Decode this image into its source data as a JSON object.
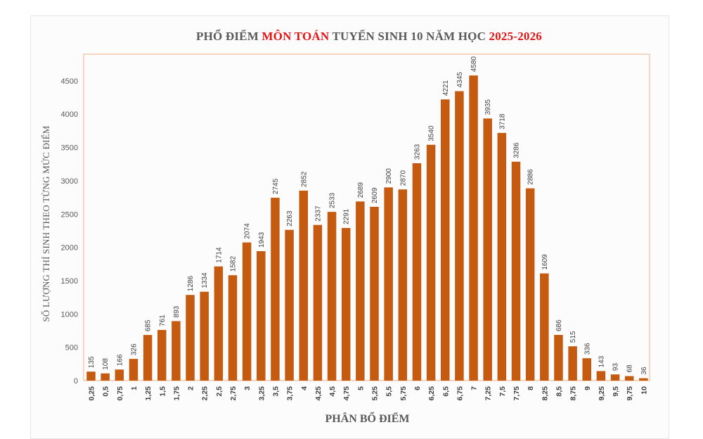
{
  "chart_data": {
    "type": "bar",
    "title_parts": {
      "prefix": "PHỔ ĐIỂM ",
      "highlight": "MÔN TOÁN",
      "middle": " TUYỂN SINH 10 NĂM HỌC ",
      "year": "2025-2026"
    },
    "xlabel": "PHÂN BỔ ĐIỂM",
    "ylabel": "SỐ LƯỢNG THÍ SINH THEO TỪNG MỨC ĐIỂM",
    "ylim": [
      0,
      4900
    ],
    "yticks": [
      0,
      500,
      1000,
      1500,
      2000,
      2500,
      3000,
      3500,
      4000,
      4500
    ],
    "grid": false,
    "categories": [
      "0,25",
      "0,5",
      "0,75",
      "1",
      "1,25",
      "1,5",
      "1,75",
      "2",
      "2,25",
      "2,5",
      "2,75",
      "3",
      "3,25",
      "3,5",
      "3,75",
      "4",
      "4,25",
      "4,5",
      "4,75",
      "5",
      "5,25",
      "5,5",
      "5,75",
      "6",
      "6,25",
      "6,5",
      "6,75",
      "7",
      "7,25",
      "7,5",
      "7,75",
      "8",
      "8,25",
      "8,5",
      "8,75",
      "9",
      "9,25",
      "9,5",
      "9,75",
      "10"
    ],
    "values": [
      135,
      108,
      166,
      326,
      685,
      761,
      893,
      1286,
      1334,
      1714,
      1582,
      2074,
      1943,
      2745,
      2263,
      2852,
      2337,
      2533,
      2291,
      2689,
      2609,
      2900,
      2870,
      3263,
      3540,
      4221,
      4345,
      4580,
      3935,
      3718,
      3286,
      2886,
      1609,
      686,
      515,
      336,
      143,
      93,
      68,
      36
    ],
    "colors": {
      "bar": "#c55a11",
      "highlight": "#e31414",
      "frame": "#f4b183"
    }
  }
}
